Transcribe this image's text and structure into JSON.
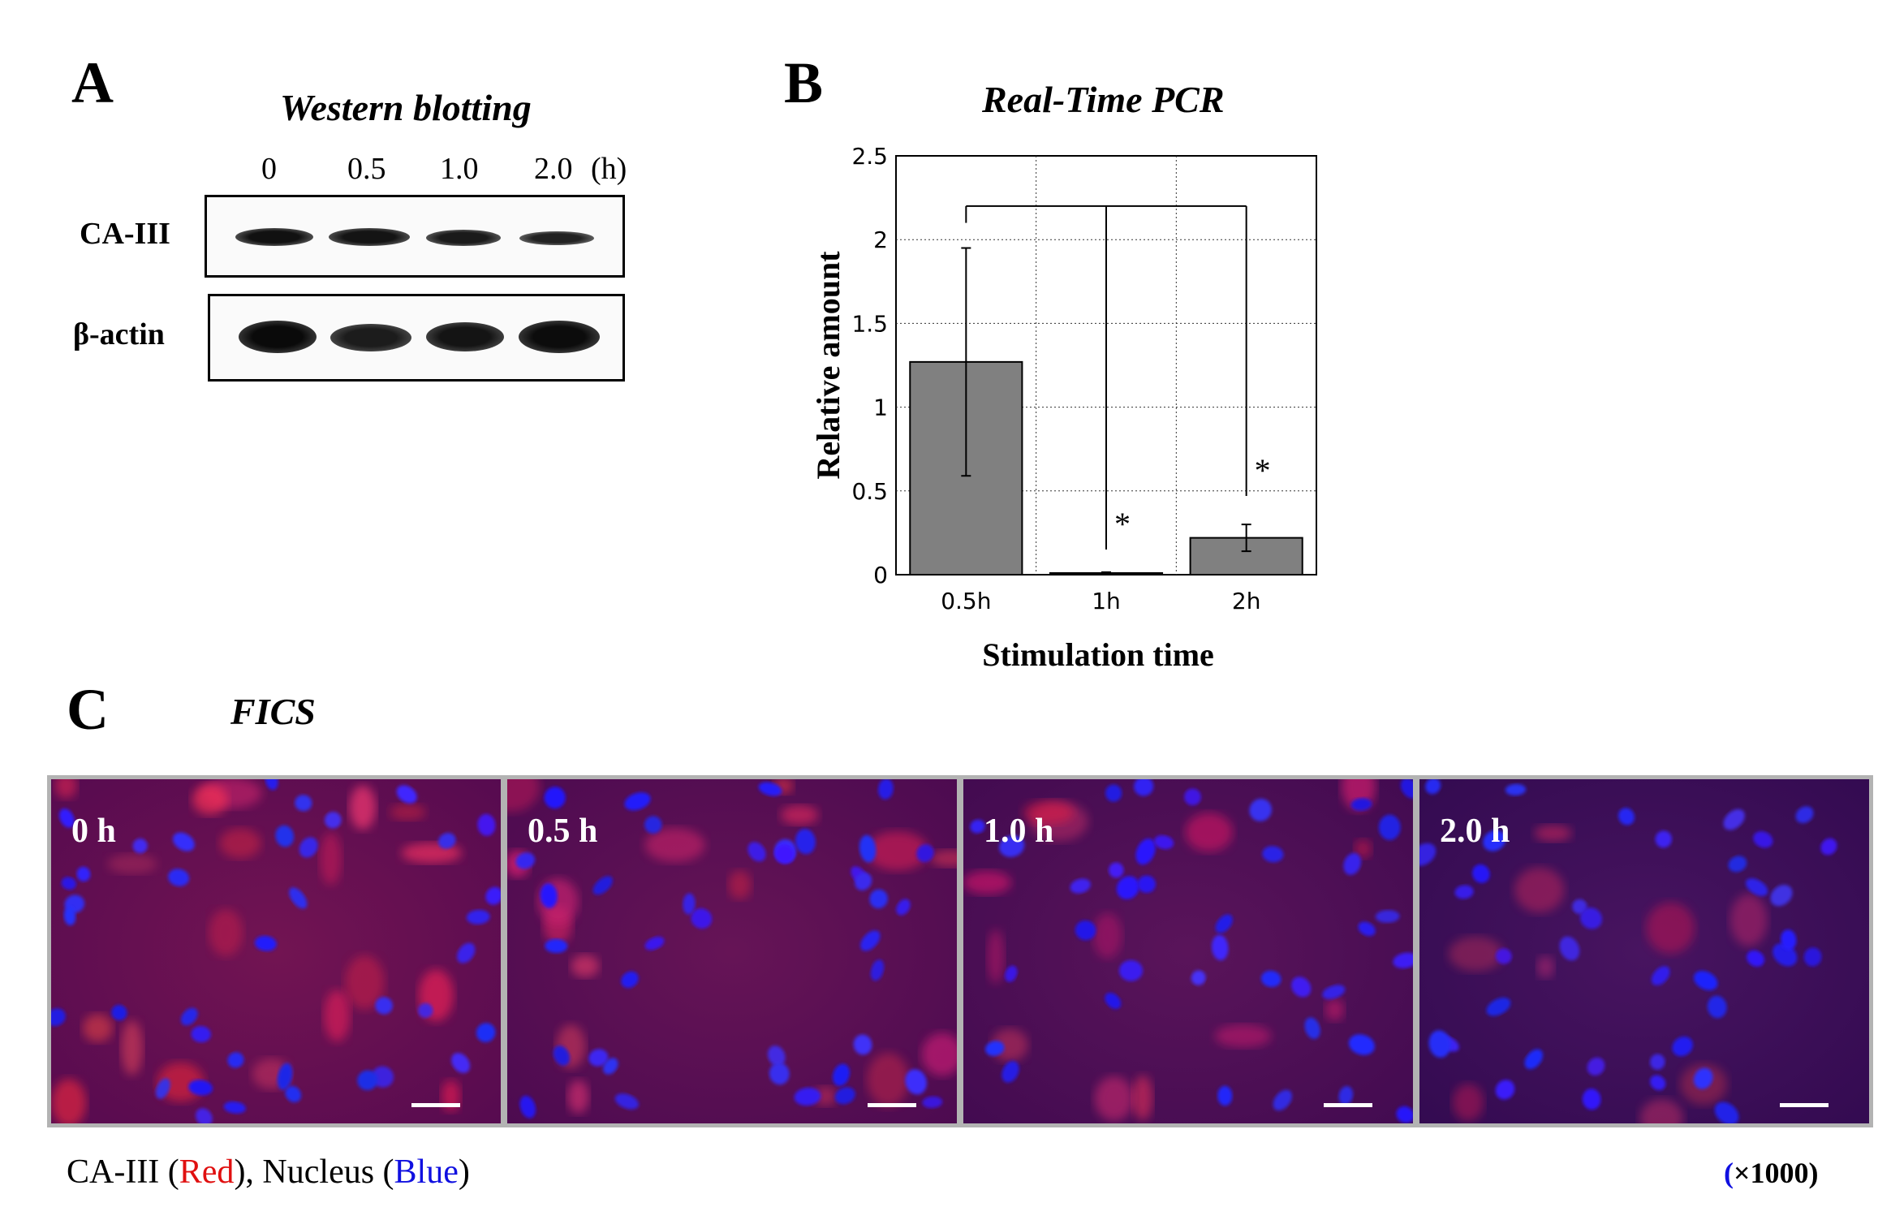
{
  "panel_a": {
    "letter": "A",
    "title": "Western blotting",
    "lanes": [
      "0",
      "0.5",
      "1.0",
      "2.0"
    ],
    "unit": "(h)",
    "rows": [
      {
        "label": "CA-III",
        "band_intensity": [
          0.9,
          0.85,
          0.8,
          0.7
        ]
      },
      {
        "label": "β-actin",
        "band_intensity": [
          0.95,
          0.8,
          0.85,
          0.92
        ]
      }
    ]
  },
  "panel_b": {
    "letter": "B",
    "chart_data": {
      "type": "bar",
      "title": "Real-Time PCR",
      "xlabel": "Stimulation time",
      "ylabel": "Relative amount",
      "categories": [
        "0.5h",
        "1h",
        "2h"
      ],
      "values": [
        1.27,
        0.01,
        0.22
      ],
      "error": [
        0.68,
        0.005,
        0.08
      ],
      "significance": [
        "",
        "*",
        "*"
      ],
      "ylim": [
        0,
        2.5
      ],
      "yticks": [
        "0",
        "0.5",
        "1",
        "1.5",
        "2",
        "2.5"
      ],
      "grid": true,
      "bar_color": "#808080"
    }
  },
  "panel_c": {
    "letter": "C",
    "title": "FICS",
    "images": [
      {
        "label": "0 h",
        "red_level": 0.9
      },
      {
        "label": "0.5 h",
        "red_level": 0.7
      },
      {
        "label": "1.0 h",
        "red_level": 0.5
      },
      {
        "label": "2.0 h",
        "red_level": 0.2
      }
    ],
    "caption": {
      "prefix": "CA-III (",
      "red_word": "Red",
      "middle": "), Nucleus (",
      "blue_word": "Blue",
      "suffix": ")"
    },
    "magnification_open": "(",
    "magnification": "×1000)"
  },
  "colors": {
    "red": "#e01010",
    "blue": "#1010e0",
    "bar": "#808080"
  }
}
